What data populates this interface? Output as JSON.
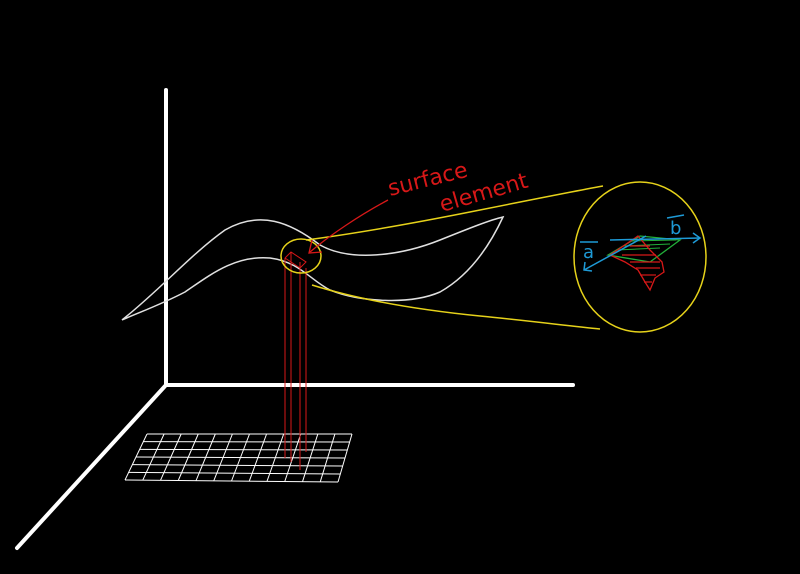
{
  "labels": {
    "surface_word": "surface",
    "element_word": "element",
    "vector_a": "a",
    "vector_b": "b"
  },
  "colors": {
    "background": "#000000",
    "axes": "#ffffff",
    "surface": "#e0e0e0",
    "highlight": "#e6d21a",
    "annotation": "#d81818",
    "vectors": "#1e9ad6",
    "parallelogram": "#22b03a"
  }
}
